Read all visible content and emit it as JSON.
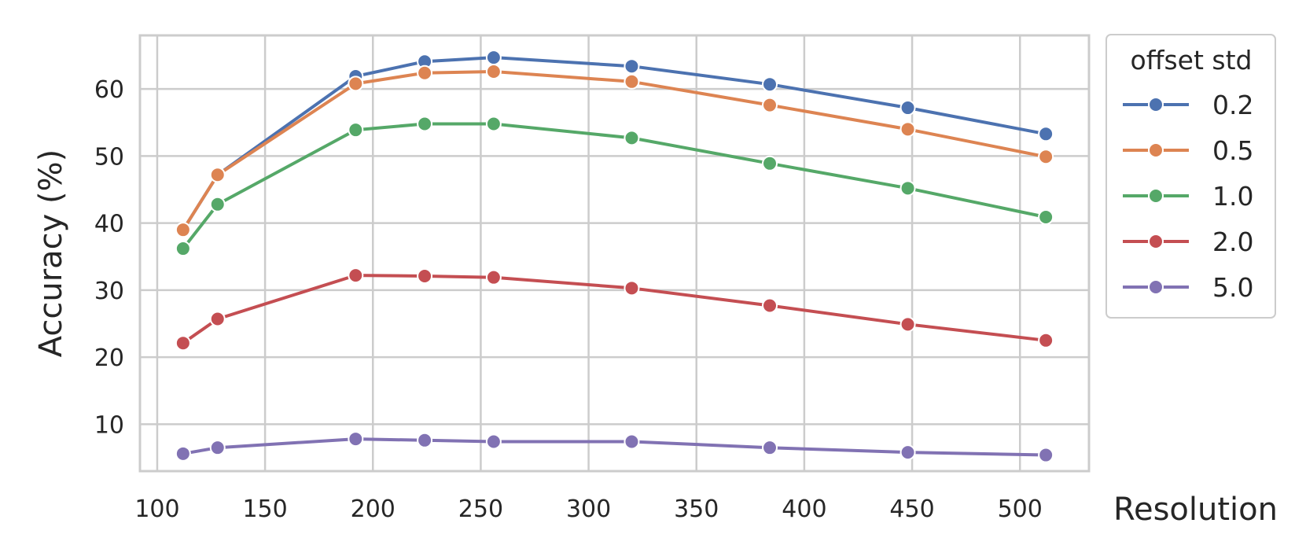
{
  "chart_data": {
    "type": "line",
    "xlabel": "Resolution",
    "ylabel": "Accuracy (%)",
    "xlim": [
      92,
      532
    ],
    "ylim": [
      3,
      68
    ],
    "xticks": [
      100,
      150,
      200,
      250,
      300,
      350,
      400,
      450,
      500
    ],
    "yticks": [
      10,
      20,
      30,
      40,
      50,
      60
    ],
    "grid": true,
    "legend": {
      "title": "offset std",
      "placement": "outside-top-right"
    },
    "x": [
      112,
      128,
      192,
      224,
      256,
      320,
      384,
      448,
      512
    ],
    "series": [
      {
        "name": "0.2",
        "color": "#4c72b0",
        "values": [
          39.0,
          47.2,
          61.9,
          64.1,
          64.7,
          63.4,
          60.7,
          57.2,
          53.3
        ]
      },
      {
        "name": "0.5",
        "color": "#dd8452",
        "values": [
          39.0,
          47.2,
          60.8,
          62.4,
          62.6,
          61.1,
          57.6,
          54.0,
          49.9
        ]
      },
      {
        "name": "1.0",
        "color": "#55a868",
        "values": [
          36.2,
          42.8,
          53.9,
          54.8,
          54.8,
          52.7,
          48.9,
          45.2,
          40.9
        ]
      },
      {
        "name": "2.0",
        "color": "#c44e52",
        "values": [
          22.1,
          25.7,
          32.2,
          32.1,
          31.9,
          30.3,
          27.7,
          24.9,
          22.5
        ]
      },
      {
        "name": "5.0",
        "color": "#8172b3",
        "values": [
          5.6,
          6.5,
          7.8,
          7.6,
          7.4,
          7.4,
          6.5,
          5.8,
          5.4
        ]
      }
    ]
  }
}
